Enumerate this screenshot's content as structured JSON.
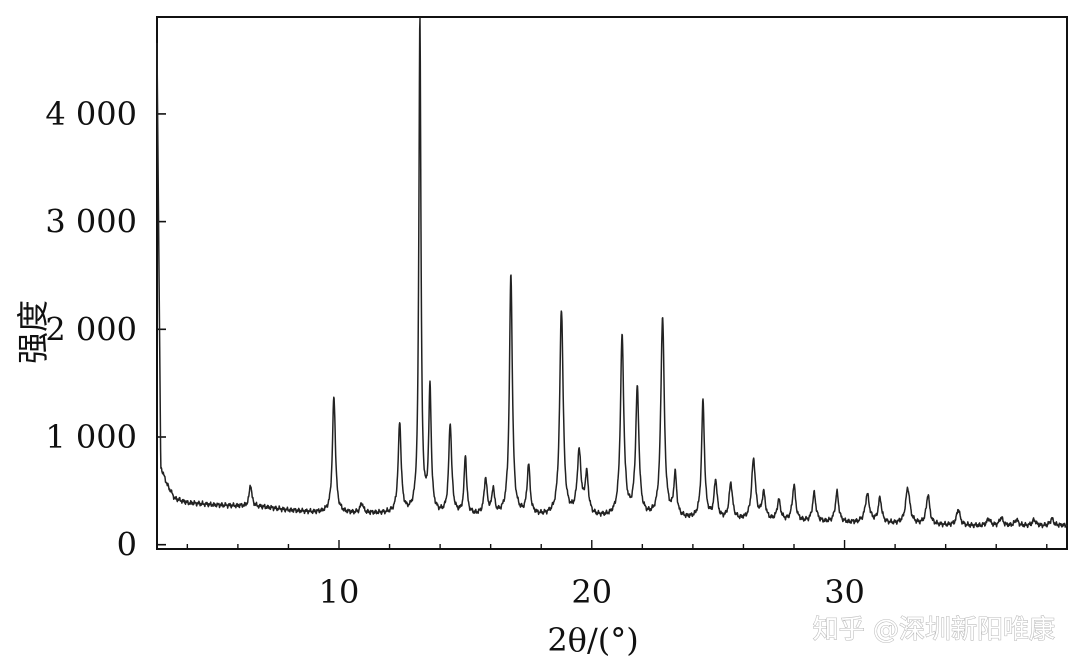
{
  "chart_data": {
    "type": "line",
    "title": "",
    "xlabel": "2θ/(°)",
    "ylabel": "强度",
    "xlim": [
      2.8,
      38.8
    ],
    "ylim": [
      -40,
      4900
    ],
    "x_ticks": [
      10,
      20,
      30
    ],
    "x_tick_labels": [
      "10",
      "20",
      "30"
    ],
    "y_ticks": [
      0,
      1000,
      2000,
      3000,
      4000
    ],
    "y_tick_labels": [
      "0",
      "1 000",
      "2 000",
      "3 000",
      "4 000"
    ],
    "grid": false,
    "legend": "none",
    "line_color": "#222222",
    "baseline": [
      [
        2.8,
        4650
      ],
      [
        2.95,
        720
      ],
      [
        3.2,
        560
      ],
      [
        3.5,
        430
      ],
      [
        4,
        390
      ],
      [
        5,
        370
      ],
      [
        6,
        360
      ],
      [
        7,
        350
      ],
      [
        8,
        320
      ],
      [
        9,
        300
      ],
      [
        10,
        290
      ],
      [
        11,
        290
      ],
      [
        12,
        285
      ],
      [
        13,
        275
      ],
      [
        14,
        270
      ],
      [
        15,
        265
      ],
      [
        16,
        265
      ],
      [
        17,
        260
      ],
      [
        18,
        260
      ],
      [
        19,
        255
      ],
      [
        20,
        250
      ],
      [
        21,
        245
      ],
      [
        22,
        240
      ],
      [
        23,
        235
      ],
      [
        24,
        230
      ],
      [
        25,
        225
      ],
      [
        26,
        220
      ],
      [
        27,
        215
      ],
      [
        28,
        210
      ],
      [
        29,
        205
      ],
      [
        30,
        200
      ],
      [
        31,
        200
      ],
      [
        32,
        190
      ],
      [
        33,
        185
      ],
      [
        34,
        180
      ],
      [
        35,
        175
      ],
      [
        36,
        175
      ],
      [
        37,
        175
      ],
      [
        38,
        175
      ],
      [
        38.8,
        180
      ]
    ],
    "peaks": [
      {
        "x": 6.5,
        "y": 560,
        "w": 0.06
      },
      {
        "x": 9.8,
        "y": 1370,
        "w": 0.07
      },
      {
        "x": 10.9,
        "y": 380,
        "w": 0.07
      },
      {
        "x": 12.4,
        "y": 1120,
        "w": 0.07
      },
      {
        "x": 13.2,
        "y": 4880,
        "w": 0.05
      },
      {
        "x": 13.6,
        "y": 1420,
        "w": 0.06
      },
      {
        "x": 14.4,
        "y": 1110,
        "w": 0.07
      },
      {
        "x": 15.0,
        "y": 810,
        "w": 0.06
      },
      {
        "x": 15.8,
        "y": 600,
        "w": 0.07
      },
      {
        "x": 16.1,
        "y": 500,
        "w": 0.06
      },
      {
        "x": 16.8,
        "y": 2500,
        "w": 0.07
      },
      {
        "x": 17.5,
        "y": 720,
        "w": 0.07
      },
      {
        "x": 18.8,
        "y": 2170,
        "w": 0.08
      },
      {
        "x": 19.5,
        "y": 830,
        "w": 0.09
      },
      {
        "x": 19.8,
        "y": 620,
        "w": 0.08
      },
      {
        "x": 21.2,
        "y": 1920,
        "w": 0.08
      },
      {
        "x": 21.8,
        "y": 1420,
        "w": 0.08
      },
      {
        "x": 22.8,
        "y": 2100,
        "w": 0.08
      },
      {
        "x": 23.3,
        "y": 620,
        "w": 0.07
      },
      {
        "x": 24.4,
        "y": 1320,
        "w": 0.07
      },
      {
        "x": 24.9,
        "y": 580,
        "w": 0.07
      },
      {
        "x": 25.5,
        "y": 560,
        "w": 0.08
      },
      {
        "x": 26.4,
        "y": 780,
        "w": 0.09
      },
      {
        "x": 26.8,
        "y": 460,
        "w": 0.08
      },
      {
        "x": 27.4,
        "y": 400,
        "w": 0.08
      },
      {
        "x": 28.0,
        "y": 540,
        "w": 0.08
      },
      {
        "x": 28.8,
        "y": 470,
        "w": 0.08
      },
      {
        "x": 29.7,
        "y": 480,
        "w": 0.08
      },
      {
        "x": 30.9,
        "y": 460,
        "w": 0.1
      },
      {
        "x": 31.4,
        "y": 420,
        "w": 0.08
      },
      {
        "x": 32.5,
        "y": 520,
        "w": 0.1
      },
      {
        "x": 33.3,
        "y": 460,
        "w": 0.08
      },
      {
        "x": 34.5,
        "y": 330,
        "w": 0.08
      },
      {
        "x": 35.7,
        "y": 240,
        "w": 0.08
      },
      {
        "x": 36.2,
        "y": 250,
        "w": 0.08
      },
      {
        "x": 36.8,
        "y": 230,
        "w": 0.08
      },
      {
        "x": 37.5,
        "y": 230,
        "w": 0.08
      },
      {
        "x": 38.2,
        "y": 240,
        "w": 0.08
      }
    ]
  },
  "watermark": {
    "text": "知乎 @深圳新阳唯康"
  }
}
